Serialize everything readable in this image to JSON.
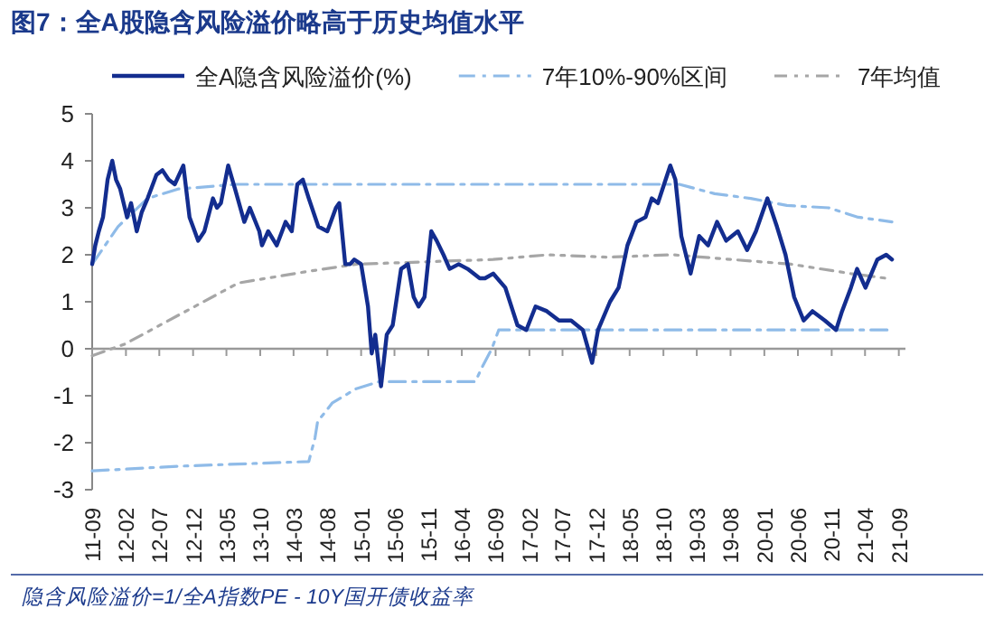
{
  "chart_data": {
    "type": "line",
    "title": "图7：全A股隐含风险溢价略高于历史均值水平",
    "annotations": [
      "隐含风险溢价=1/全A指数PE - 10Y国开债收益率"
    ],
    "xlim": [
      "2011-09",
      "2021-10"
    ],
    "xticks": [
      {
        "value": "2011-09",
        "label": "11-09"
      },
      {
        "value": "2012-02",
        "label": "12-02"
      },
      {
        "value": "2012-07",
        "label": "12-07"
      },
      {
        "value": "2012-12",
        "label": "12-12"
      },
      {
        "value": "2013-05",
        "label": "13-05"
      },
      {
        "value": "2013-10",
        "label": "13-10"
      },
      {
        "value": "2014-03",
        "label": "14-03"
      },
      {
        "value": "2014-08",
        "label": "14-08"
      },
      {
        "value": "2015-01",
        "label": "15-01"
      },
      {
        "value": "2015-06",
        "label": "15-06"
      },
      {
        "value": "2015-11",
        "label": "15-11"
      },
      {
        "value": "2016-04",
        "label": "16-04"
      },
      {
        "value": "2016-09",
        "label": "16-09"
      },
      {
        "value": "2017-02",
        "label": "17-02"
      },
      {
        "value": "2017-07",
        "label": "17-07"
      },
      {
        "value": "2017-12",
        "label": "17-12"
      },
      {
        "value": "2018-05",
        "label": "18-05"
      },
      {
        "value": "2018-10",
        "label": "18-10"
      },
      {
        "value": "2019-03",
        "label": "19-03"
      },
      {
        "value": "2019-08",
        "label": "19-08"
      },
      {
        "value": "2020-01",
        "label": "20-01"
      },
      {
        "value": "2020-06",
        "label": "20-06"
      },
      {
        "value": "2020-11",
        "label": "20-11"
      },
      {
        "value": "2021-04",
        "label": "21-04"
      },
      {
        "value": "2021-09",
        "label": "21-09"
      }
    ],
    "ylim": [
      -3,
      5
    ],
    "yticks": [
      -3,
      -2,
      -1,
      0,
      1,
      2,
      3,
      4,
      5
    ],
    "grid": false,
    "legend": "top",
    "marker": "none",
    "ref_lines": [
      {
        "axis": "y",
        "value": 0,
        "color": "#999999"
      }
    ],
    "series": [
      {
        "name": "全A隐含风险溢价(%)",
        "color": "#132d8f",
        "line_style": "solid",
        "x": [
          "2011-09-01",
          "2011-09-15",
          "2011-10-01",
          "2011-10-20",
          "2011-11-10",
          "2011-12-01",
          "2011-12-18",
          "2012-01-06",
          "2012-02-06",
          "2012-02-24",
          "2012-03-21",
          "2012-04-12",
          "2012-05-09",
          "2012-06-18",
          "2012-07-15",
          "2012-08-12",
          "2012-09-09",
          "2012-10-18",
          "2012-11-15",
          "2012-12-24",
          "2013-01-21",
          "2013-03-01",
          "2013-03-19",
          "2013-04-06",
          "2013-05-09",
          "2013-06-09",
          "2013-07-21",
          "2013-08-15",
          "2013-09-27",
          "2013-10-09",
          "2013-11-06",
          "2013-12-15",
          "2014-01-24",
          "2014-02-21",
          "2014-03-18",
          "2014-04-12",
          "2014-05-09",
          "2014-06-21",
          "2014-08-01",
          "2014-09-09",
          "2014-09-24",
          "2014-10-21",
          "2014-11-12",
          "2014-12-01",
          "2015-01-01",
          "2015-02-01",
          "2015-02-18",
          "2015-03-06",
          "2015-04-01",
          "2015-04-27",
          "2015-05-24",
          "2015-07-01",
          "2015-08-01",
          "2015-08-27",
          "2015-09-18",
          "2015-10-15",
          "2015-11-15",
          "2015-12-09",
          "2016-01-09",
          "2016-02-06",
          "2016-03-18",
          "2016-04-27",
          "2016-06-21",
          "2016-07-15",
          "2016-08-21",
          "2016-10-15",
          "2016-12-09",
          "2017-01-18",
          "2017-03-01",
          "2017-04-21",
          "2017-06-15",
          "2017-08-09",
          "2017-10-01",
          "2017-11-12",
          "2017-12-09",
          "2018-02-01",
          "2018-03-12",
          "2018-04-21",
          "2018-06-01",
          "2018-07-12",
          "2018-08-09",
          "2018-09-06",
          "2018-11-01",
          "2018-11-24",
          "2018-12-21",
          "2019-02-01",
          "2019-03-12",
          "2019-04-21",
          "2019-06-01",
          "2019-07-12",
          "2019-09-03",
          "2019-10-15",
          "2019-11-24",
          "2020-01-15",
          "2020-02-27",
          "2020-04-06",
          "2020-05-15",
          "2020-06-27",
          "2020-08-06",
          "2020-10-01",
          "2020-11-21",
          "2020-12-18",
          "2021-01-27",
          "2021-02-24",
          "2021-04-03",
          "2021-05-27",
          "2021-07-06",
          "2021-08-01"
        ],
        "values": [
          1.8,
          2.2,
          2.5,
          2.8,
          3.6,
          4.0,
          3.6,
          3.4,
          2.8,
          3.1,
          2.5,
          2.9,
          3.2,
          3.7,
          3.8,
          3.6,
          3.5,
          3.9,
          2.8,
          2.3,
          2.5,
          3.2,
          3.0,
          3.1,
          3.9,
          3.4,
          2.7,
          3.0,
          2.5,
          2.2,
          2.5,
          2.2,
          2.7,
          2.5,
          3.5,
          3.6,
          3.2,
          2.6,
          2.5,
          3.0,
          3.1,
          1.8,
          1.8,
          1.9,
          1.8,
          0.9,
          -0.1,
          0.3,
          -0.8,
          0.3,
          0.5,
          1.7,
          1.8,
          1.1,
          0.9,
          1.1,
          2.5,
          2.3,
          2.0,
          1.7,
          1.8,
          1.7,
          1.5,
          1.5,
          1.6,
          1.3,
          0.5,
          0.4,
          0.9,
          0.8,
          0.6,
          0.6,
          0.4,
          -0.3,
          0.4,
          1.0,
          1.3,
          2.2,
          2.7,
          2.8,
          3.2,
          3.1,
          3.9,
          3.6,
          2.4,
          1.6,
          2.4,
          2.2,
          2.7,
          2.3,
          2.5,
          2.1,
          2.5,
          3.2,
          2.6,
          2.0,
          1.1,
          0.6,
          0.8,
          0.6,
          0.4,
          0.8,
          1.3,
          1.7,
          1.3,
          1.9,
          2.0,
          1.9
        ]
      },
      {
        "name": "7年10%-90%区间",
        "color": "#8fbbe8",
        "line_style": "dashed",
        "x": [
          "2011-09-01",
          "2011-12-27",
          "2012-05-09",
          "2012-09-24",
          "2013-06-18",
          "2018-12-12",
          "2019-05-21",
          "2019-10-31",
          "2020-04-12",
          "2020-10-18",
          "2021-03-01",
          "2021-08-01"
        ],
        "values": [
          1.8,
          2.6,
          3.2,
          3.4,
          3.5,
          3.5,
          3.3,
          3.2,
          3.05,
          3.0,
          2.8,
          2.7
        ]
      },
      {
        "color": "#8fbbe8",
        "line_style": "dashed",
        "x": [
          "2011-09-01",
          "2012-09-24",
          "2014-05-09",
          "2014-06-06",
          "2014-06-18",
          "2014-08-24",
          "2014-12-10",
          "2015-03-24",
          "2016-06-01",
          "2016-07-01",
          "2016-08-15",
          "2016-09-15",
          "2021-08-01"
        ],
        "values": [
          -2.6,
          -2.5,
          -2.4,
          -1.9,
          -1.55,
          -1.15,
          -0.85,
          -0.7,
          -0.7,
          -0.4,
          0.0,
          0.4,
          0.4
        ]
      },
      {
        "name": "7年均值",
        "color": "#a6a6a6",
        "line_style": "dotted",
        "x": [
          "2011-09-01",
          "2012-01-27",
          "2013-06-24",
          "2014-05-09",
          "2014-12-12",
          "2016-08-21",
          "2017-04-27",
          "2018-01-21",
          "2018-11-12",
          "2019-08-06",
          "2020-05-01",
          "2021-01-27",
          "2021-07-06"
        ],
        "values": [
          -0.15,
          0.1,
          1.4,
          1.65,
          1.8,
          1.9,
          2.0,
          1.95,
          2.0,
          1.9,
          1.8,
          1.6,
          1.5
        ]
      }
    ]
  }
}
